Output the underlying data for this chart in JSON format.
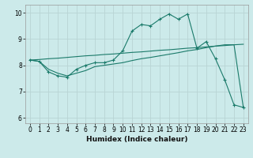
{
  "background_color": "#cceaea",
  "grid_color": "#b8d4d4",
  "line_color": "#1a7a6a",
  "xlabel": "Humidex (Indice chaleur)",
  "xlim": [
    -0.5,
    23.5
  ],
  "ylim": [
    5.8,
    10.3
  ],
  "xticks": [
    0,
    1,
    2,
    3,
    4,
    5,
    6,
    7,
    8,
    9,
    10,
    11,
    12,
    13,
    14,
    15,
    16,
    17,
    18,
    19,
    20,
    21,
    22,
    23
  ],
  "yticks": [
    6,
    7,
    8,
    9,
    10
  ],
  "curve1_x": [
    0,
    1,
    2,
    3,
    4,
    5,
    6,
    7,
    8,
    9,
    10,
    11,
    12,
    13,
    14,
    15,
    16,
    17,
    18,
    19,
    20,
    21,
    22,
    23
  ],
  "curve1_y": [
    8.2,
    8.15,
    7.75,
    7.6,
    7.55,
    7.85,
    8.0,
    8.1,
    8.1,
    8.2,
    8.55,
    9.3,
    9.55,
    9.5,
    9.75,
    9.95,
    9.75,
    9.95,
    8.65,
    8.9,
    8.25,
    7.45,
    6.5,
    6.4
  ],
  "curve2_x": [
    0,
    1,
    2,
    3,
    4,
    5,
    6,
    7,
    8,
    9,
    10,
    11,
    12,
    13,
    14,
    15,
    16,
    17,
    18,
    19,
    20,
    21,
    22,
    23
  ],
  "curve2_y": [
    8.2,
    8.22,
    8.25,
    8.27,
    8.3,
    8.33,
    8.36,
    8.38,
    8.41,
    8.43,
    8.46,
    8.49,
    8.51,
    8.54,
    8.57,
    8.59,
    8.62,
    8.65,
    8.67,
    8.7,
    8.73,
    8.75,
    8.78,
    8.8
  ],
  "curve3_x": [
    0,
    1,
    2,
    3,
    4,
    5,
    6,
    7,
    8,
    9,
    10,
    11,
    12,
    13,
    14,
    15,
    16,
    17,
    18,
    19,
    20,
    21,
    22,
    23
  ],
  "curve3_y": [
    8.2,
    8.15,
    7.85,
    7.7,
    7.6,
    7.7,
    7.8,
    7.95,
    8.0,
    8.05,
    8.1,
    8.18,
    8.25,
    8.3,
    8.36,
    8.42,
    8.48,
    8.55,
    8.6,
    8.67,
    8.73,
    8.78,
    8.78,
    6.4
  ],
  "xlabel_fontsize": 6.5,
  "tick_fontsize": 5.5
}
